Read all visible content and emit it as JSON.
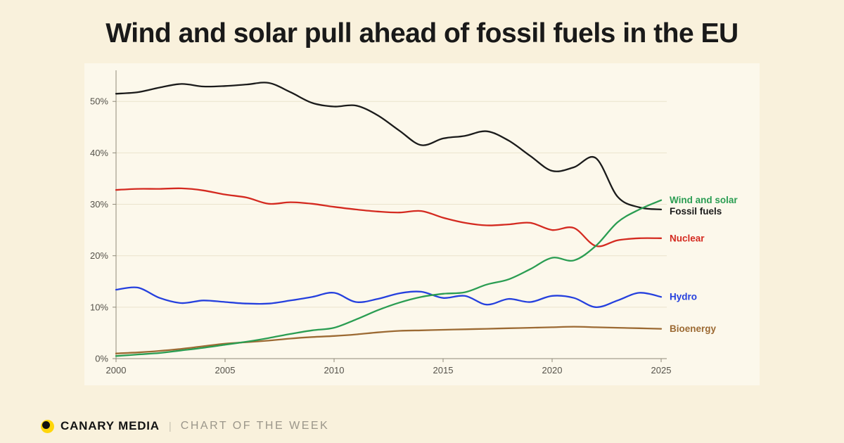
{
  "page": {
    "title": "Wind and solar pull ahead of fossil fuels in the EU"
  },
  "footer": {
    "brand": "CANARY MEDIA",
    "separator": "|",
    "tagline": "CHART OF THE WEEK",
    "logo": "canary-media-logo"
  },
  "chart_data": {
    "type": "line",
    "title": "Wind and solar pull ahead of fossil fuels in the EU",
    "xlabel": "",
    "ylabel": "",
    "legend": "inline-right-end-of-line-labels",
    "grid": true,
    "ylim": [
      0,
      55.5
    ],
    "x": [
      2000,
      2001,
      2002,
      2003,
      2004,
      2005,
      2006,
      2007,
      2008,
      2009,
      2010,
      2011,
      2012,
      2013,
      2014,
      2015,
      2016,
      2017,
      2018,
      2019,
      2020,
      2021,
      2022,
      2023,
      2024,
      2025
    ],
    "xticks": [
      2000,
      2005,
      2010,
      2015,
      2020,
      2025
    ],
    "xtick_labels": [
      "2000",
      "2005",
      "2010",
      "2015",
      "2020",
      "2025"
    ],
    "yticks": [
      0,
      10,
      20,
      30,
      40,
      50
    ],
    "ytick_labels": [
      "0%",
      "10%",
      "20%",
      "30%",
      "40%",
      "50%"
    ],
    "style": {
      "grid_color": "#EAE3CD",
      "axis_color": "#8F8A7A",
      "tick_color": "#55524A",
      "panel_background": "#FCF8EB",
      "page_background": "#F9F1DC"
    },
    "series": [
      {
        "name": "Fossil fuels",
        "color": "#1B1B1B",
        "values": [
          51.5,
          51.8,
          52.7,
          53.4,
          52.9,
          53.0,
          53.3,
          53.6,
          51.8,
          49.7,
          49.0,
          49.2,
          47.3,
          44.3,
          41.5,
          42.8,
          43.3,
          44.2,
          42.4,
          39.4,
          36.5,
          37.2,
          39.0,
          31.5,
          29.4,
          29.0
        ]
      },
      {
        "name": "Nuclear",
        "color": "#D42A20",
        "values": [
          32.8,
          33.0,
          33.0,
          33.1,
          32.7,
          31.9,
          31.3,
          30.1,
          30.4,
          30.1,
          29.5,
          29.0,
          28.6,
          28.4,
          28.7,
          27.4,
          26.4,
          25.9,
          26.1,
          26.4,
          25.0,
          25.4,
          21.9,
          23.0,
          23.4,
          23.4
        ]
      },
      {
        "name": "Hydro",
        "color": "#2540DE",
        "values": [
          13.4,
          13.8,
          11.8,
          10.8,
          11.3,
          11.0,
          10.7,
          10.7,
          11.3,
          12.0,
          12.8,
          11.0,
          11.6,
          12.7,
          13.0,
          11.8,
          12.2,
          10.5,
          11.6,
          11.0,
          12.2,
          11.8,
          10.0,
          11.3,
          12.8,
          12.0
        ]
      },
      {
        "name": "Bioenergy",
        "color": "#9C6A33",
        "values": [
          1.0,
          1.2,
          1.5,
          1.9,
          2.4,
          2.9,
          3.2,
          3.5,
          3.9,
          4.2,
          4.4,
          4.7,
          5.1,
          5.4,
          5.5,
          5.6,
          5.7,
          5.8,
          5.9,
          6.0,
          6.1,
          6.2,
          6.1,
          6.0,
          5.9,
          5.8
        ]
      },
      {
        "name": "Wind and solar",
        "color": "#2A9D52",
        "values": [
          0.5,
          0.8,
          1.1,
          1.6,
          2.1,
          2.7,
          3.3,
          4.0,
          4.8,
          5.5,
          6.0,
          7.6,
          9.4,
          10.9,
          12.0,
          12.6,
          12.9,
          14.4,
          15.4,
          17.4,
          19.6,
          19.1,
          21.9,
          26.5,
          29.0,
          30.8
        ]
      }
    ]
  }
}
